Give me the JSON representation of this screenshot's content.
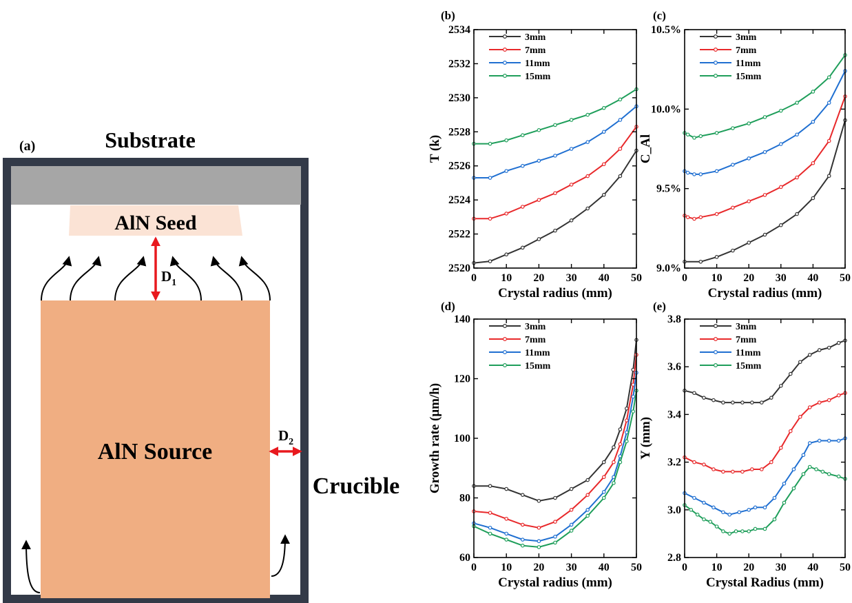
{
  "diagram": {
    "panel_label": "(a)",
    "substrate_label": "Substrate",
    "seed_label": "AlN Seed",
    "source_label": "AlN Source",
    "crucible_label": "Crucible",
    "d1_label": "D",
    "d1_sub": "1",
    "d2_label": "D",
    "d2_sub": "2",
    "colors": {
      "crucible_wall": "#333a48",
      "substrate": "#a6a6a6",
      "seed": "#fbe3d5",
      "source": "#f0ae82",
      "dimension_arrow": "#e8191e",
      "flow_arrow": "#000000"
    }
  },
  "chart_data": [
    {
      "panel_label": "(b)",
      "type": "line",
      "xlabel": "Crystal radius (mm)",
      "ylabel": "T (k)",
      "xlim": [
        0,
        50
      ],
      "ylim": [
        2520,
        2534
      ],
      "xticks": [
        0,
        10,
        20,
        30,
        40,
        50
      ],
      "xtick_labels": [
        "0",
        "10",
        "20",
        "30",
        "40",
        "50"
      ],
      "yticks": [
        2520,
        2522,
        2524,
        2526,
        2528,
        2530,
        2532,
        2534
      ],
      "ytick_labels": [
        "2520",
        "2522",
        "2524",
        "2526",
        "2528",
        "2530",
        "2532",
        "2534"
      ],
      "legend": "top-left",
      "series": [
        {
          "name": "3mm",
          "color": "#333333",
          "x": [
            0,
            5,
            10,
            15,
            20,
            25,
            30,
            35,
            40,
            45,
            50
          ],
          "values": [
            2520.3,
            2520.4,
            2520.8,
            2521.2,
            2521.7,
            2522.2,
            2522.8,
            2523.5,
            2524.3,
            2525.4,
            2526.9
          ]
        },
        {
          "name": "7mm",
          "color": "#e8292b",
          "x": [
            0,
            5,
            10,
            15,
            20,
            25,
            30,
            35,
            40,
            45,
            50
          ],
          "values": [
            2522.9,
            2522.9,
            2523.2,
            2523.6,
            2524.0,
            2524.4,
            2524.9,
            2525.4,
            2526.1,
            2527.0,
            2528.3
          ]
        },
        {
          "name": "11mm",
          "color": "#1f6fd1",
          "x": [
            0,
            5,
            10,
            15,
            20,
            25,
            30,
            35,
            40,
            45,
            50
          ],
          "values": [
            2525.3,
            2525.3,
            2525.7,
            2526.0,
            2526.3,
            2526.6,
            2527.0,
            2527.4,
            2528.0,
            2528.7,
            2529.5
          ]
        },
        {
          "name": "15mm",
          "color": "#1e9e5a",
          "x": [
            0,
            5,
            10,
            15,
            20,
            25,
            30,
            35,
            40,
            45,
            50
          ],
          "values": [
            2527.3,
            2527.3,
            2527.5,
            2527.8,
            2528.1,
            2528.4,
            2528.7,
            2529.0,
            2529.4,
            2529.9,
            2530.5
          ]
        }
      ]
    },
    {
      "panel_label": "(c)",
      "type": "line",
      "xlabel": "Crystal radius (mm)",
      "ylabel": "C_Al",
      "xlim": [
        0,
        50
      ],
      "ylim": [
        0.09,
        0.105
      ],
      "xticks": [
        0,
        10,
        20,
        30,
        40,
        50
      ],
      "xtick_labels": [
        "0",
        "10",
        "20",
        "30",
        "40",
        "50"
      ],
      "yticks": [
        0.09,
        0.095,
        0.1,
        0.105
      ],
      "ytick_labels": [
        "9.0%",
        "9.5%",
        "10.0%",
        "10.5%"
      ],
      "legend": "top-left",
      "series": [
        {
          "name": "3mm",
          "color": "#333333",
          "x": [
            0,
            5,
            10,
            15,
            20,
            25,
            30,
            35,
            40,
            45,
            50
          ],
          "values": [
            0.0904,
            0.0904,
            0.0907,
            0.0911,
            0.0916,
            0.0921,
            0.0927,
            0.0934,
            0.0944,
            0.0958,
            0.0993
          ]
        },
        {
          "name": "7mm",
          "color": "#e8292b",
          "x": [
            0,
            1,
            3,
            5,
            10,
            15,
            20,
            25,
            30,
            35,
            40,
            45,
            50
          ],
          "values": [
            0.0933,
            0.0932,
            0.0931,
            0.0932,
            0.0934,
            0.0938,
            0.0942,
            0.0946,
            0.0951,
            0.0957,
            0.0966,
            0.098,
            0.1008
          ]
        },
        {
          "name": "11mm",
          "color": "#1f6fd1",
          "x": [
            0,
            1,
            3,
            5,
            10,
            15,
            20,
            25,
            30,
            35,
            40,
            45,
            50
          ],
          "values": [
            0.0961,
            0.096,
            0.0959,
            0.0959,
            0.0961,
            0.0965,
            0.0969,
            0.0973,
            0.0978,
            0.0984,
            0.0992,
            0.1004,
            0.1024
          ]
        },
        {
          "name": "15mm",
          "color": "#1e9e5a",
          "x": [
            0,
            1,
            3,
            5,
            10,
            15,
            20,
            25,
            30,
            35,
            40,
            45,
            50
          ],
          "values": [
            0.0985,
            0.0984,
            0.0982,
            0.0983,
            0.0985,
            0.0988,
            0.0991,
            0.0995,
            0.0999,
            0.1004,
            0.1011,
            0.102,
            0.1034
          ]
        }
      ]
    },
    {
      "panel_label": "(d)",
      "type": "line",
      "xlabel": "Crystal radius (mm)",
      "ylabel": "Growth rate (μm/h)",
      "xlim": [
        0,
        50
      ],
      "ylim": [
        60,
        140
      ],
      "xticks": [
        0,
        10,
        20,
        30,
        40,
        50
      ],
      "xtick_labels": [
        "0",
        "10",
        "20",
        "30",
        "40",
        "50"
      ],
      "yticks": [
        60,
        80,
        100,
        120,
        140
      ],
      "ytick_labels": [
        "60",
        "80",
        "100",
        "120",
        "140"
      ],
      "legend": "top-left",
      "series": [
        {
          "name": "3mm",
          "color": "#333333",
          "x": [
            0,
            5,
            10,
            15,
            20,
            25,
            30,
            35,
            40,
            43,
            45,
            47,
            49,
            50
          ],
          "values": [
            84,
            84,
            83,
            81,
            79,
            80,
            83,
            86,
            92,
            97,
            103,
            110,
            123,
            133
          ]
        },
        {
          "name": "7mm",
          "color": "#e8292b",
          "x": [
            0,
            5,
            10,
            15,
            20,
            25,
            30,
            35,
            40,
            43,
            45,
            47,
            49,
            50
          ],
          "values": [
            75.5,
            75,
            73,
            71,
            70,
            72,
            76,
            81,
            87,
            92,
            98,
            106,
            118,
            128
          ]
        },
        {
          "name": "11mm",
          "color": "#1f6fd1",
          "x": [
            0,
            5,
            10,
            15,
            20,
            25,
            30,
            35,
            40,
            43,
            45,
            47,
            49,
            50
          ],
          "values": [
            71.5,
            70,
            68,
            66,
            65.5,
            67,
            71,
            76,
            82,
            87,
            94,
            102,
            114,
            122
          ]
        },
        {
          "name": "15mm",
          "color": "#1e9e5a",
          "x": [
            0,
            5,
            10,
            15,
            20,
            25,
            30,
            35,
            40,
            43,
            45,
            47,
            49,
            50
          ],
          "values": [
            70.5,
            68,
            66,
            64,
            63.5,
            65,
            69,
            74,
            80,
            85,
            92,
            99,
            109,
            116
          ]
        }
      ]
    },
    {
      "panel_label": "(e)",
      "type": "line",
      "xlabel": "Crystal Radius (mm)",
      "ylabel": "Y (mm)",
      "xlim": [
        0,
        50
      ],
      "ylim": [
        2.8,
        3.8
      ],
      "xticks": [
        0,
        10,
        20,
        30,
        40,
        50
      ],
      "xtick_labels": [
        "0",
        "10",
        "20",
        "30",
        "40",
        "50"
      ],
      "yticks": [
        2.8,
        3.0,
        3.2,
        3.4,
        3.6,
        3.8
      ],
      "ytick_labels": [
        "2.8",
        "3.0",
        "3.2",
        "3.4",
        "3.6",
        "3.8"
      ],
      "legend": "top-left",
      "series": [
        {
          "name": "3mm",
          "color": "#333333",
          "x": [
            0,
            3,
            6,
            9,
            12,
            15,
            18,
            21,
            24,
            27,
            30,
            33,
            36,
            39,
            42,
            45,
            48,
            50
          ],
          "values": [
            3.5,
            3.49,
            3.47,
            3.46,
            3.45,
            3.45,
            3.45,
            3.45,
            3.45,
            3.47,
            3.52,
            3.57,
            3.62,
            3.65,
            3.67,
            3.68,
            3.7,
            3.71
          ]
        },
        {
          "name": "7mm",
          "color": "#e8292b",
          "x": [
            0,
            3,
            6,
            9,
            12,
            15,
            18,
            21,
            24,
            27,
            30,
            33,
            36,
            39,
            42,
            45,
            48,
            50
          ],
          "values": [
            3.22,
            3.2,
            3.19,
            3.17,
            3.16,
            3.16,
            3.16,
            3.17,
            3.17,
            3.2,
            3.26,
            3.33,
            3.39,
            3.43,
            3.45,
            3.46,
            3.48,
            3.49
          ]
        },
        {
          "name": "11mm",
          "color": "#1f6fd1",
          "x": [
            0,
            3,
            6,
            9,
            12,
            14,
            17,
            20,
            22,
            25,
            28,
            31,
            34,
            37,
            39,
            42,
            45,
            48,
            50
          ],
          "values": [
            3.07,
            3.05,
            3.03,
            3.01,
            2.99,
            2.98,
            2.99,
            3.0,
            3.01,
            3.01,
            3.05,
            3.11,
            3.17,
            3.23,
            3.28,
            3.29,
            3.29,
            3.29,
            3.3
          ]
        },
        {
          "name": "15mm",
          "color": "#1e9e5a",
          "x": [
            0,
            2,
            4,
            6,
            8,
            10,
            12,
            14,
            16,
            18,
            20,
            22,
            25,
            28,
            31,
            34,
            37,
            39,
            41,
            43,
            45,
            48,
            50
          ],
          "values": [
            3.02,
            3.0,
            2.98,
            2.96,
            2.95,
            2.93,
            2.91,
            2.9,
            2.91,
            2.91,
            2.91,
            2.92,
            2.92,
            2.96,
            3.03,
            3.09,
            3.15,
            3.18,
            3.17,
            3.16,
            3.15,
            3.14,
            3.13
          ]
        }
      ]
    }
  ]
}
